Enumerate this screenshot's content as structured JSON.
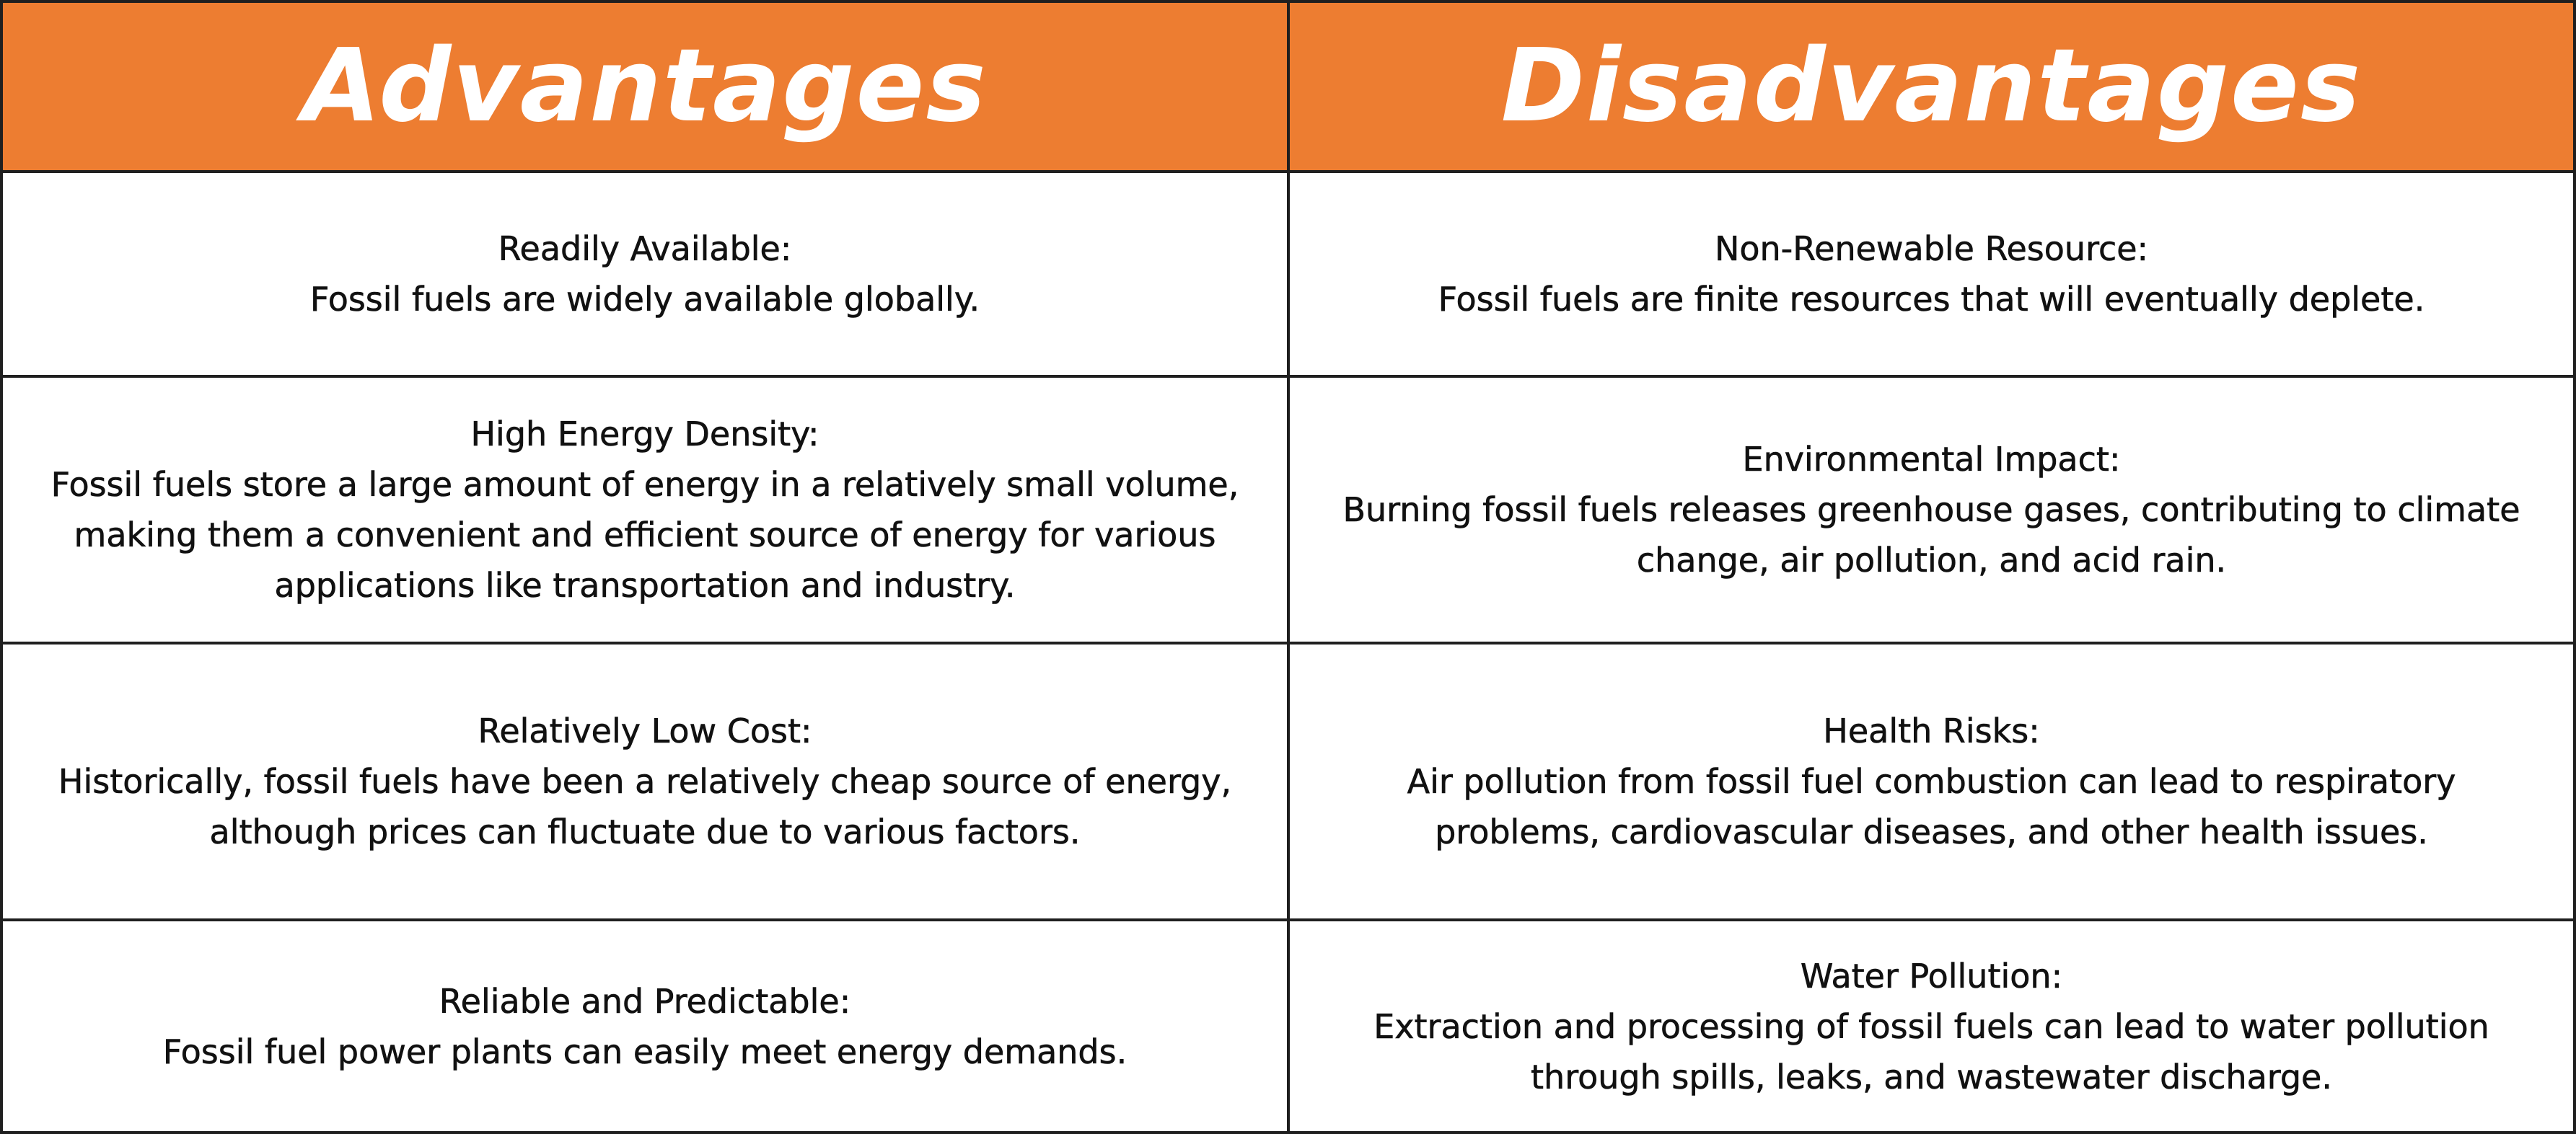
{
  "table": {
    "headers": {
      "advantages": "Advantages",
      "disadvantages": "Disadvantages"
    },
    "advantages": [
      {
        "title": "Readily Available:",
        "lines": [
          "Fossil fuels are widely available globally."
        ]
      },
      {
        "title": "High Energy Density:",
        "lines": [
          "Fossil fuels store a large amount of energy in a relatively small volume,",
          "making them a convenient and efficient source of energy for various",
          "applications like transportation and industry."
        ]
      },
      {
        "title": "Relatively Low Cost:",
        "lines": [
          "Historically, fossil fuels have been a relatively cheap source of energy,",
          "although prices can fluctuate due to various factors."
        ]
      },
      {
        "title": "Reliable and Predictable:",
        "lines": [
          "Fossil fuel power plants can easily meet energy demands."
        ]
      }
    ],
    "disadvantages": [
      {
        "title": "Non-Renewable Resource:",
        "lines": [
          "Fossil fuels are finite resources that will eventually deplete."
        ]
      },
      {
        "title": "Environmental Impact:",
        "lines": [
          "Burning fossil fuels releases greenhouse gases, contributing to climate",
          "change, air pollution, and acid rain."
        ]
      },
      {
        "title": "Health Risks:",
        "lines": [
          "Air pollution from fossil fuel combustion can lead to respiratory",
          "problems, cardiovascular diseases, and other health issues."
        ]
      },
      {
        "title": "Water Pollution:",
        "lines": [
          "Extraction and processing of fossil fuels can lead to water pollution",
          "through spills, leaks, and wastewater discharge."
        ]
      }
    ],
    "colors": {
      "header_background": "#ed7d31",
      "header_text": "#ffffff",
      "border": "#1f1f1f",
      "body_text": "#111111"
    }
  }
}
